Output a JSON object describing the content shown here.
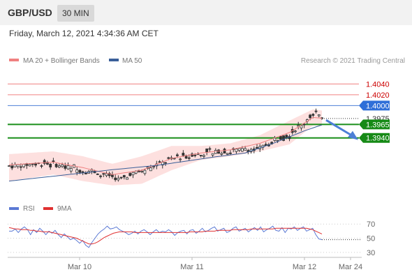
{
  "header": {
    "symbol": "GBP/USD",
    "timeframe": "30 MIN"
  },
  "datetime": "Friday, March 12, 2021 4:34:36 AM CET",
  "colors": {
    "ma20": "#f08080",
    "ma50": "#3a5f99",
    "bollinger_fill": "#fde0df",
    "resistance": "#f08080",
    "pivot": "#4d7fd6",
    "support": "#1a8f1a",
    "candle": "#333333",
    "rsi": "#5b79d4",
    "rsi_ma": "#e03030",
    "label_red_text": "#cc0000",
    "label_pivot_bg": "#2f6fd8",
    "label_support_bg": "#168a16"
  },
  "chart_data": [
    {
      "type": "candlestick",
      "legend": [
        {
          "name": "MA 20 + Bollinger Bands",
          "color": "#f08080"
        },
        {
          "name": "MA 50",
          "color": "#3a5f99"
        }
      ],
      "credit": "Research © 2021 Trading Central",
      "y_range": [
        1.3831,
        1.4069
      ],
      "x_labels": [
        "Mar 10",
        "Mar 11",
        "Mar 12",
        "Mar 24"
      ],
      "levels": [
        {
          "label": "1.4040",
          "value": 1.404,
          "kind": "resistance"
        },
        {
          "label": "1.4020",
          "value": 1.402,
          "kind": "resistance"
        },
        {
          "label": "1.4000",
          "value": 1.4,
          "kind": "pivot"
        },
        {
          "label": "1.3965",
          "value": 1.3965,
          "kind": "support"
        },
        {
          "label": "1.3940",
          "value": 1.394,
          "kind": "support"
        }
      ],
      "current_price_label": "1.3975",
      "forecast_arrow": "down",
      "candles": {
        "count": 107,
        "open": 1.3888,
        "close": 1.3976,
        "path": [
          [
            0,
            1.3888
          ],
          [
            12,
            1.3893
          ],
          [
            25,
            1.3882
          ],
          [
            30,
            1.3874
          ],
          [
            37,
            1.3862
          ],
          [
            44,
            1.3877
          ],
          [
            55,
            1.3902
          ],
          [
            65,
            1.3912
          ],
          [
            75,
            1.3916
          ],
          [
            85,
            1.3922
          ],
          [
            95,
            1.3946
          ],
          [
            104,
            1.3985
          ],
          [
            107,
            1.3976
          ]
        ]
      },
      "ma20": [
        [
          0,
          1.389
        ],
        [
          15,
          1.3895
        ],
        [
          25,
          1.3885
        ],
        [
          35,
          1.3872
        ],
        [
          45,
          1.388
        ],
        [
          55,
          1.3902
        ],
        [
          65,
          1.3912
        ],
        [
          75,
          1.3918
        ],
        [
          85,
          1.393
        ],
        [
          95,
          1.395
        ],
        [
          103,
          1.3978
        ],
        [
          107,
          1.3976
        ]
      ],
      "bollinger_upper": [
        [
          0,
          1.391
        ],
        [
          15,
          1.3915
        ],
        [
          25,
          1.3906
        ],
        [
          35,
          1.3892
        ],
        [
          45,
          1.3906
        ],
        [
          55,
          1.3925
        ],
        [
          65,
          1.3925
        ],
        [
          75,
          1.393
        ],
        [
          85,
          1.3945
        ],
        [
          95,
          1.3972
        ],
        [
          103,
          1.3993
        ],
        [
          107,
          1.399
        ]
      ],
      "bollinger_lower": [
        [
          0,
          1.386
        ],
        [
          15,
          1.3872
        ],
        [
          25,
          1.386
        ],
        [
          35,
          1.3852
        ],
        [
          45,
          1.3855
        ],
        [
          55,
          1.388
        ],
        [
          65,
          1.3899
        ],
        [
          75,
          1.3906
        ],
        [
          85,
          1.3915
        ],
        [
          95,
          1.3928
        ],
        [
          103,
          1.3963
        ],
        [
          107,
          1.3962
        ]
      ],
      "ma50": [
        [
          0,
          1.386
        ],
        [
          20,
          1.3872
        ],
        [
          35,
          1.3881
        ],
        [
          50,
          1.3889
        ],
        [
          60,
          1.3897
        ],
        [
          70,
          1.3905
        ],
        [
          80,
          1.3912
        ],
        [
          90,
          1.3931
        ],
        [
          100,
          1.3953
        ],
        [
          107,
          1.3966
        ]
      ]
    },
    {
      "type": "line",
      "legend": [
        {
          "name": "RSI",
          "color": "#5b79d4"
        },
        {
          "name": "9MA",
          "color": "#e03030"
        }
      ],
      "y_ticks": [
        "70",
        "50",
        "30"
      ],
      "y_range": [
        23,
        81
      ],
      "series": [
        {
          "name": "RSI",
          "values": [
            60,
            60,
            63,
            58,
            63,
            66,
            62,
            55,
            62,
            58,
            64,
            60,
            55,
            60,
            57,
            61,
            55,
            51,
            56,
            52,
            48,
            50,
            47,
            43,
            47,
            40,
            37,
            44,
            50,
            56,
            60,
            63,
            67,
            63,
            64,
            66,
            62,
            60,
            58,
            55,
            57,
            60,
            56,
            60,
            62,
            59,
            55,
            59,
            62,
            58,
            60,
            59,
            62,
            59,
            54,
            58,
            60,
            61,
            56,
            61,
            62,
            57,
            60,
            64,
            59,
            61,
            64,
            66,
            60,
            62,
            64,
            58,
            60,
            64,
            66,
            60,
            62,
            64,
            59,
            62,
            65,
            61,
            66,
            59,
            62,
            64,
            67,
            61,
            60,
            65,
            58,
            64,
            63,
            66,
            61,
            64,
            66,
            60,
            62,
            64,
            55,
            49,
            48
          ]
        },
        {
          "name": "9MA",
          "values": [
            65,
            64,
            63,
            63,
            62,
            62,
            62,
            61,
            61,
            60,
            60,
            59,
            59,
            59,
            58,
            57,
            56,
            55,
            54,
            53,
            52,
            51,
            50,
            48,
            46,
            44,
            42,
            42,
            43,
            45,
            48,
            51,
            53,
            55,
            57,
            58,
            59,
            59,
            59,
            59,
            59,
            58,
            58,
            58,
            58,
            58,
            58,
            58,
            58,
            58,
            58,
            58,
            58,
            58,
            58,
            58,
            58,
            58,
            58,
            59,
            59,
            59,
            59,
            59,
            60,
            60,
            60,
            60,
            61,
            61,
            61,
            61,
            61,
            62,
            62,
            62,
            62,
            62,
            62,
            63,
            63,
            63,
            63,
            63,
            63,
            63,
            63,
            64,
            64,
            64,
            64,
            64,
            64,
            64,
            64,
            64,
            64,
            64,
            63,
            62,
            60,
            58,
            56
          ]
        }
      ]
    }
  ]
}
